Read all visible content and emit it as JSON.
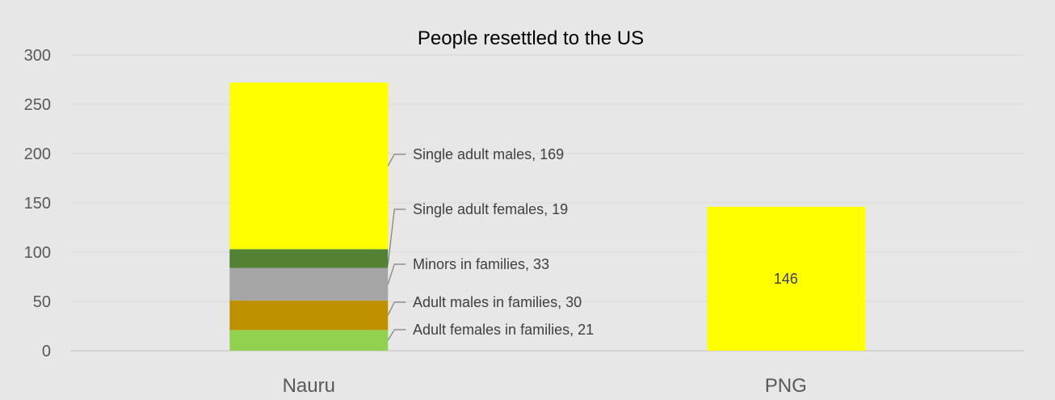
{
  "chart_data": {
    "type": "bar",
    "stacked": true,
    "title": "People resettled to the US",
    "categories": [
      "Nauru",
      "PNG"
    ],
    "ylim": [
      0,
      300
    ],
    "yticks": [
      0,
      50,
      100,
      150,
      200,
      250,
      300
    ],
    "grid": true,
    "series": [
      {
        "name": "Adult females in families",
        "values": [
          21,
          0
        ],
        "color": "#92d050"
      },
      {
        "name": "Adult males in families",
        "values": [
          30,
          0
        ],
        "color": "#bf9000"
      },
      {
        "name": "Minors in families",
        "values": [
          33,
          0
        ],
        "color": "#a5a5a5"
      },
      {
        "name": "Single adult females",
        "values": [
          19,
          0
        ],
        "color": "#548235"
      },
      {
        "name": "Single adult males",
        "values": [
          169,
          146
        ],
        "color": "#ffff00"
      }
    ],
    "data_labels": [
      {
        "category": "Nauru",
        "series": "Adult females in families",
        "text": "Adult females in families, 21"
      },
      {
        "category": "Nauru",
        "series": "Adult males in families",
        "text": "Adult males in families, 30"
      },
      {
        "category": "Nauru",
        "series": "Minors in families",
        "text": "Minors in families, 33"
      },
      {
        "category": "Nauru",
        "series": "Single adult females",
        "text": "Single adult females, 19"
      },
      {
        "category": "Nauru",
        "series": "Single adult males",
        "text": "Single adult males, 169"
      },
      {
        "category": "PNG",
        "series": "Single adult males",
        "text": "146"
      }
    ]
  }
}
